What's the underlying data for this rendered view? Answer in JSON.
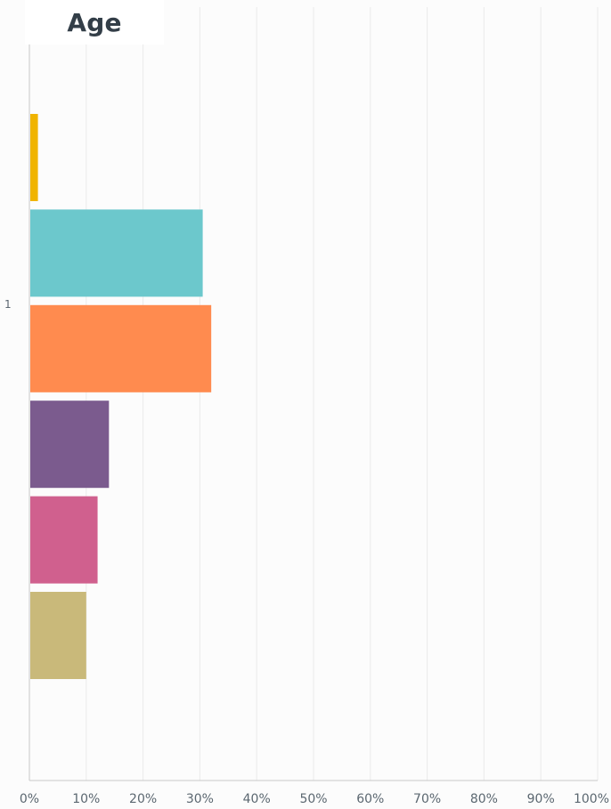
{
  "chart_data": {
    "type": "bar",
    "orientation": "horizontal",
    "title": "Age",
    "xlabel": "",
    "ylabel": "",
    "categories": [
      "1"
    ],
    "xlim": [
      0,
      100
    ],
    "x_ticks": [
      "0%",
      "10%",
      "20%",
      "30%",
      "40%",
      "50%",
      "60%",
      "70%",
      "80%",
      "90%",
      "100%"
    ],
    "grid": true,
    "legend": "none",
    "series": [
      {
        "values": [
          1.5
        ],
        "color": "#f0b400"
      },
      {
        "values": [
          30.5
        ],
        "color": "#6cc8cc"
      },
      {
        "values": [
          32
        ],
        "color": "#ff8b4f"
      },
      {
        "values": [
          14
        ],
        "color": "#7b5b8e"
      },
      {
        "values": [
          12
        ],
        "color": "#d0608e"
      },
      {
        "values": [
          10
        ],
        "color": "#c9b97a"
      }
    ]
  }
}
